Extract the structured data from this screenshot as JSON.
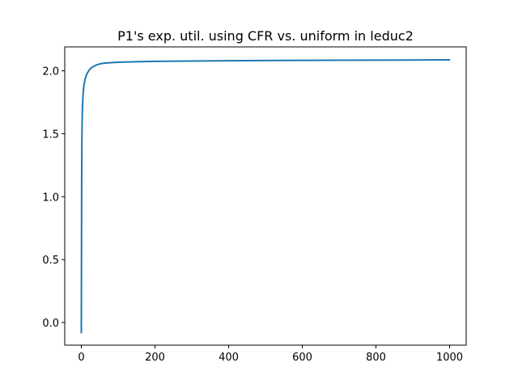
{
  "chart_data": {
    "type": "line",
    "title": "P1's exp. util. using CFR vs. uniform in leduc2",
    "xlabel": "",
    "ylabel": "",
    "xlim": [
      -45,
      1045
    ],
    "ylim": [
      -0.18,
      2.19
    ],
    "xticks": [
      0,
      200,
      400,
      600,
      800,
      1000
    ],
    "xtick_labels": [
      "0",
      "200",
      "400",
      "600",
      "800",
      "1000"
    ],
    "yticks": [
      0.0,
      0.5,
      1.0,
      1.5,
      2.0
    ],
    "ytick_labels": [
      "0.0",
      "0.5",
      "1.0",
      "1.5",
      "2.0"
    ],
    "grid": false,
    "legend": "none",
    "series": [
      {
        "color": "#1f77b4",
        "x": [
          0,
          0.5,
          1,
          1.5,
          2,
          2.5,
          3,
          4,
          5,
          6,
          8,
          10,
          12,
          15,
          20,
          25,
          30,
          40,
          50,
          60,
          80,
          100,
          150,
          200,
          300,
          400,
          500,
          600,
          700,
          800,
          900,
          999
        ],
        "y": [
          -0.08,
          0.55,
          1.15,
          1.42,
          1.56,
          1.64,
          1.7,
          1.77,
          1.82,
          1.86,
          1.9,
          1.93,
          1.95,
          1.975,
          2.0,
          2.018,
          2.03,
          2.045,
          2.055,
          2.06,
          2.065,
          2.068,
          2.072,
          2.075,
          2.078,
          2.08,
          2.082,
          2.083,
          2.084,
          2.085,
          2.086,
          2.087
        ]
      }
    ]
  }
}
